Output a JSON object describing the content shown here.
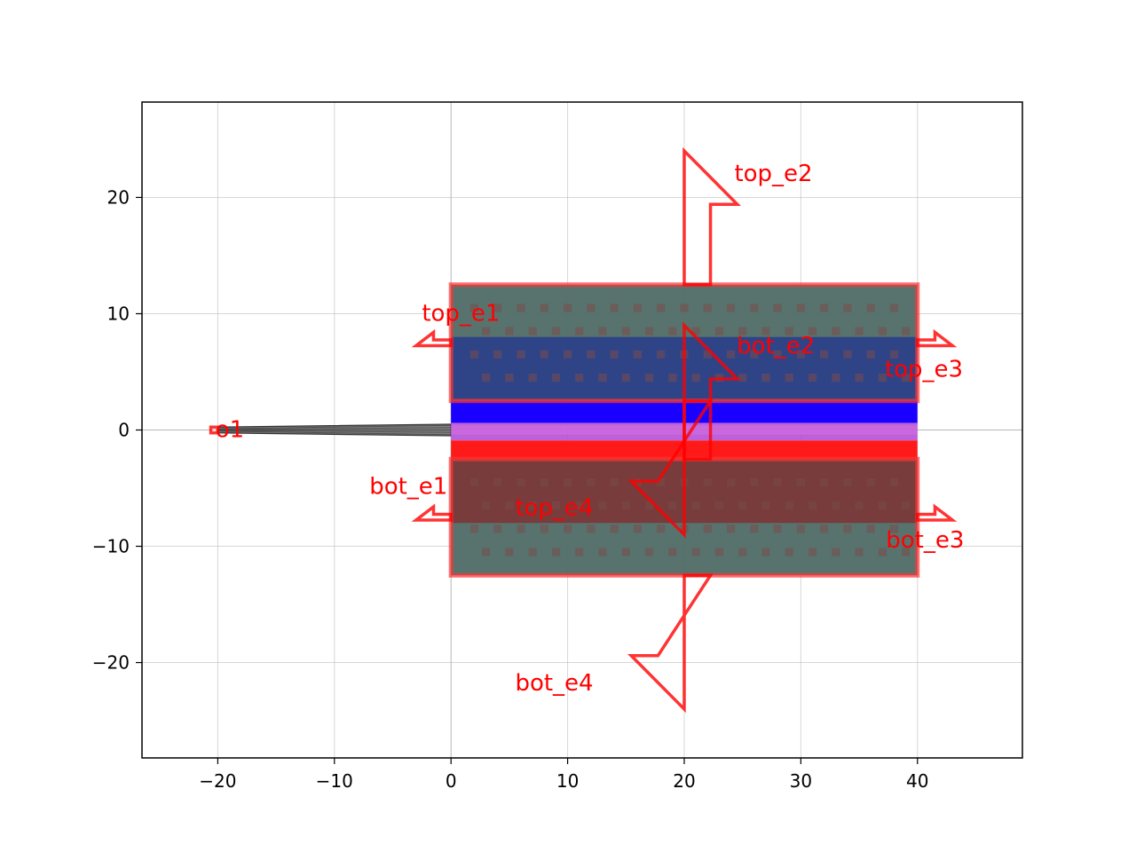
{
  "chart_data": {
    "type": "layout",
    "title": "",
    "xlabel": "",
    "ylabel": "",
    "xlim": [
      -26.5,
      49.0
    ],
    "ylim": [
      -28.2,
      28.2
    ],
    "grid": true,
    "xticks": [
      -20,
      -10,
      0,
      10,
      20,
      30,
      40
    ],
    "yticks": [
      -20,
      -10,
      0,
      10,
      20
    ],
    "xtick_labels": [
      "−20",
      "−10",
      "0",
      "10",
      "20",
      "30",
      "40"
    ],
    "ytick_labels": [
      "−20",
      "−10",
      "0",
      "10",
      "20"
    ],
    "colors": {
      "port": "#ff0000",
      "taper": "#555555",
      "heater_pad": "#4f6b66",
      "heater_blue_layer": "#283c8c",
      "heater_red_layer": "#7d3232",
      "via": "#7a4a4a",
      "waveguide_blue": "#1a00ff",
      "waveguide_mid": "#b64fd6",
      "waveguide_red": "#ff1a1a",
      "grid": "#b0b0b0"
    },
    "taper": {
      "x0": -20,
      "x1": 0,
      "width_start": 0.5,
      "width_end": 1.0
    },
    "waveguide_core": {
      "x0": 0,
      "x1": 40,
      "y0": -2.5,
      "y1": 2.5
    },
    "pads": [
      {
        "name": "top",
        "x0": 0,
        "x1": 40,
        "y0": 2.5,
        "y1": 12.5,
        "via_rows": [
          10.5,
          8.5,
          6.5,
          4.5
        ]
      },
      {
        "name": "bot",
        "x0": 0,
        "x1": 40,
        "y0": -12.5,
        "y1": -2.5,
        "via_rows": [
          -4.5,
          -6.5,
          -8.5,
          -10.5
        ]
      }
    ],
    "ports": [
      {
        "name": "o1",
        "x": -20,
        "y": 0,
        "orientation": 180,
        "width": 0.5,
        "label_x": -20.2,
        "label_y": 0
      },
      {
        "name": "top_e1",
        "x": 0,
        "y": 7.5,
        "orientation": 180,
        "width": 0.5,
        "label_x": -2.5,
        "label_y": 10
      },
      {
        "name": "top_e2",
        "x": 20,
        "y": 12.5,
        "orientation": 90,
        "width": 4.5,
        "label_x": 24.3,
        "label_y": 22
      },
      {
        "name": "top_e3",
        "x": 40,
        "y": 7.5,
        "orientation": 0,
        "width": 0.5,
        "label_x": 37.2,
        "label_y": 5.2
      },
      {
        "name": "top_e4",
        "x": 20,
        "y": 2.5,
        "orientation": 270,
        "width": 4.5,
        "label_x": 5.5,
        "label_y": -6.7
      },
      {
        "name": "bot_e1",
        "x": 0,
        "y": -7.5,
        "orientation": 180,
        "width": 0.5,
        "label_x": -7.0,
        "label_y": -4.9
      },
      {
        "name": "bot_e2",
        "x": 20,
        "y": -2.5,
        "orientation": 90,
        "width": 4.5,
        "label_x": 24.5,
        "label_y": 7.2
      },
      {
        "name": "bot_e3",
        "x": 40,
        "y": -7.5,
        "orientation": 0,
        "width": 0.5,
        "label_x": 37.3,
        "label_y": -9.5
      },
      {
        "name": "bot_e4",
        "x": 20,
        "y": -12.5,
        "orientation": 270,
        "width": 4.5,
        "label_x": 5.5,
        "label_y": -21.8
      }
    ]
  }
}
